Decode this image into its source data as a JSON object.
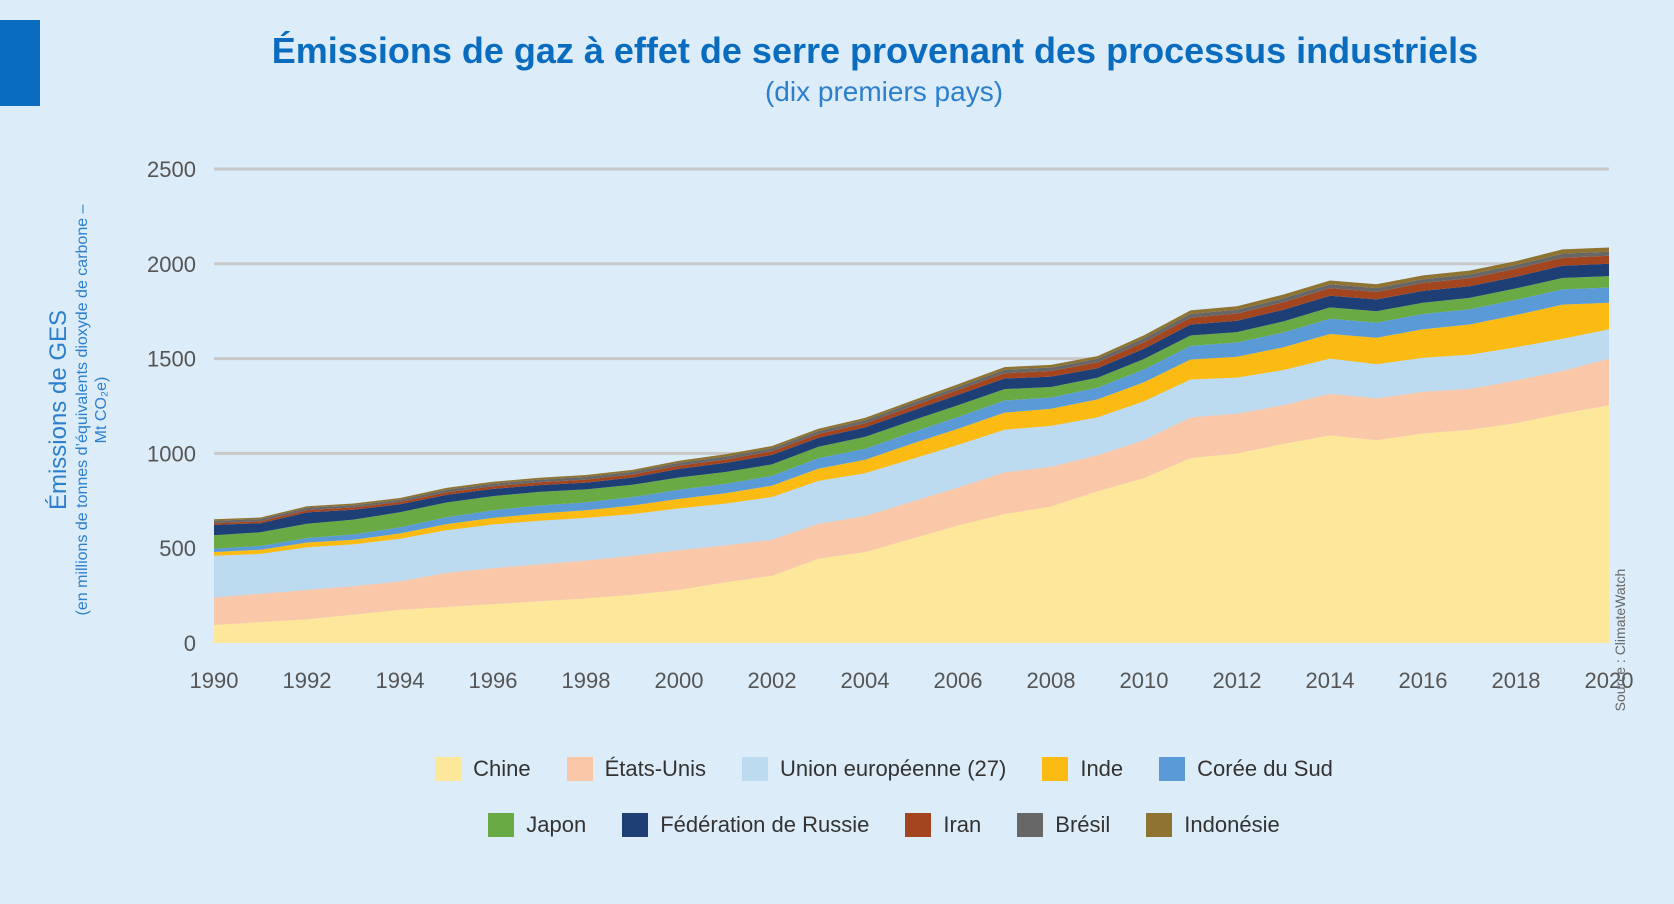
{
  "title": "Émissions de gaz à effet de serre provenant des processus industriels",
  "subtitle": "(dix premiers pays)",
  "source": "Source : ClimateWatch",
  "chart_data": {
    "type": "area",
    "stacked": true,
    "title": "Émissions de gaz à effet de serre provenant des processus industriels",
    "subtitle": "(dix premiers pays)",
    "ylabel": "Émissions de GES",
    "ylabel_sub": "(en millions de tonnes d’équivalents dioxyde de carbone – Mt CO₂e)",
    "ylim": [
      0,
      2500
    ],
    "yticks": [
      0,
      500,
      1000,
      1500,
      2000,
      2500
    ],
    "xlim": [
      1990,
      2020
    ],
    "xticks": [
      1990,
      1992,
      1994,
      1996,
      1998,
      2000,
      2002,
      2004,
      2006,
      2008,
      2010,
      2012,
      2014,
      2016,
      2018,
      2020
    ],
    "grid": "horizontal",
    "legend_position": "bottom",
    "x": [
      1990,
      1991,
      1992,
      1993,
      1994,
      1995,
      1996,
      1997,
      1998,
      1999,
      2000,
      2001,
      2002,
      2003,
      2004,
      2005,
      2006,
      2007,
      2008,
      2009,
      2010,
      2011,
      2012,
      2013,
      2014,
      2015,
      2016,
      2017,
      2018,
      2019,
      2020
    ],
    "series": [
      {
        "name": "Chine",
        "color": "#fce79a",
        "values": [
          95,
          110,
          125,
          150,
          175,
          190,
          205,
          220,
          235,
          255,
          280,
          320,
          355,
          445,
          480,
          550,
          620,
          680,
          720,
          800,
          870,
          975,
          1000,
          1050,
          1095,
          1070,
          1105,
          1125,
          1160,
          1210,
          1255
        ]
      },
      {
        "name": "États-Unis",
        "color": "#fac7a8",
        "values": [
          145,
          150,
          155,
          150,
          150,
          180,
          190,
          195,
          200,
          205,
          210,
          195,
          190,
          185,
          190,
          195,
          200,
          220,
          210,
          190,
          200,
          215,
          210,
          205,
          220,
          220,
          220,
          215,
          225,
          225,
          245
        ]
      },
      {
        "name": "Union européenne (27)",
        "color": "#bcdaf0",
        "values": [
          220,
          210,
          225,
          220,
          225,
          225,
          230,
          230,
          225,
          220,
          220,
          220,
          225,
          225,
          225,
          225,
          225,
          225,
          215,
          200,
          205,
          200,
          190,
          185,
          185,
          180,
          180,
          180,
          175,
          170,
          155
        ]
      },
      {
        "name": "Inde",
        "color": "#fcbb13",
        "values": [
          20,
          22,
          25,
          25,
          28,
          32,
          35,
          38,
          40,
          45,
          50,
          55,
          60,
          65,
          72,
          80,
          85,
          90,
          90,
          95,
          100,
          105,
          110,
          120,
          130,
          140,
          150,
          160,
          170,
          180,
          140
        ]
      },
      {
        "name": "Corée du Sud",
        "color": "#5a9ad7",
        "values": [
          18,
          20,
          24,
          28,
          32,
          36,
          40,
          42,
          42,
          45,
          48,
          50,
          52,
          55,
          58,
          60,
          62,
          64,
          60,
          62,
          68,
          72,
          75,
          78,
          80,
          80,
          80,
          80,
          80,
          80,
          80
        ]
      },
      {
        "name": "Japon",
        "color": "#6aaa45",
        "values": [
          70,
          72,
          75,
          78,
          80,
          78,
          75,
          72,
          68,
          65,
          65,
          62,
          60,
          60,
          62,
          62,
          62,
          60,
          55,
          52,
          55,
          55,
          55,
          58,
          60,
          60,
          60,
          60,
          60,
          60,
          60
        ]
      },
      {
        "name": "Fédération de Russie",
        "color": "#1e3f75",
        "values": [
          55,
          48,
          60,
          52,
          42,
          40,
          38,
          36,
          36,
          38,
          45,
          48,
          50,
          48,
          50,
          52,
          55,
          56,
          55,
          50,
          55,
          58,
          60,
          62,
          62,
          62,
          62,
          62,
          62,
          65,
          65
        ]
      },
      {
        "name": "Iran",
        "color": "#a34620",
        "values": [
          10,
          10,
          12,
          12,
          12,
          14,
          14,
          15,
          16,
          16,
          18,
          18,
          20,
          20,
          22,
          24,
          26,
          28,
          30,
          32,
          34,
          36,
          38,
          40,
          40,
          40,
          42,
          42,
          42,
          42,
          42
        ]
      },
      {
        "name": "Brésil",
        "color": "#676767",
        "values": [
          12,
          12,
          12,
          12,
          12,
          13,
          13,
          14,
          14,
          14,
          15,
          15,
          15,
          15,
          16,
          16,
          16,
          18,
          18,
          18,
          20,
          20,
          20,
          20,
          20,
          20,
          20,
          20,
          20,
          22,
          22
        ]
      },
      {
        "name": "Indonésie",
        "color": "#8f7330",
        "values": [
          8,
          8,
          8,
          9,
          9,
          10,
          10,
          10,
          10,
          10,
          10,
          12,
          12,
          12,
          12,
          13,
          14,
          14,
          14,
          14,
          16,
          18,
          18,
          20,
          20,
          20,
          20,
          20,
          20,
          22,
          22
        ]
      }
    ]
  }
}
